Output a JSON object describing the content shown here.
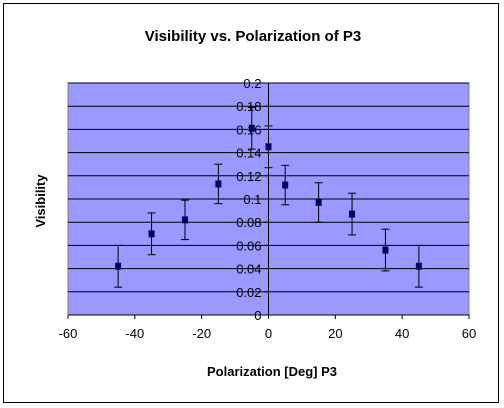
{
  "chart_data": {
    "type": "scatter",
    "title": "Visibility vs. Polarization of P3",
    "xlabel": "Polarization [Deg] P3",
    "ylabel": "Visibility",
    "xlim": [
      -60,
      60
    ],
    "ylim": [
      0,
      0.2
    ],
    "x_ticks": [
      "-60",
      "-40",
      "-20",
      "0",
      "20",
      "40",
      "60"
    ],
    "y_ticks": [
      "0",
      "0.02",
      "0.04",
      "0.06",
      "0.08",
      "0.1",
      "0.12",
      "0.14",
      "0.16",
      "0.18",
      "0.2"
    ],
    "grid": "horizontal",
    "legend": "none",
    "series": [
      {
        "points": [
          {
            "x": -45,
            "y": 0.042,
            "err": 0.018
          },
          {
            "x": -35,
            "y": 0.07,
            "err": 0.018
          },
          {
            "x": -25,
            "y": 0.082,
            "err": 0.017
          },
          {
            "x": -15,
            "y": 0.113,
            "err": 0.017
          },
          {
            "x": -5,
            "y": 0.161,
            "err": 0.018
          },
          {
            "x": 0,
            "y": 0.145,
            "err": 0.018
          },
          {
            "x": 5,
            "y": 0.112,
            "err": 0.017
          },
          {
            "x": 15,
            "y": 0.097,
            "err": 0.017
          },
          {
            "x": 25,
            "y": 0.087,
            "err": 0.018
          },
          {
            "x": 35,
            "y": 0.056,
            "err": 0.018
          },
          {
            "x": 45,
            "y": 0.042,
            "err": 0.018
          }
        ]
      }
    ],
    "colors": {
      "plot_background": "#9999ff",
      "gridline": "#000000",
      "marker": "#000066",
      "error_bar": "#000000"
    }
  }
}
